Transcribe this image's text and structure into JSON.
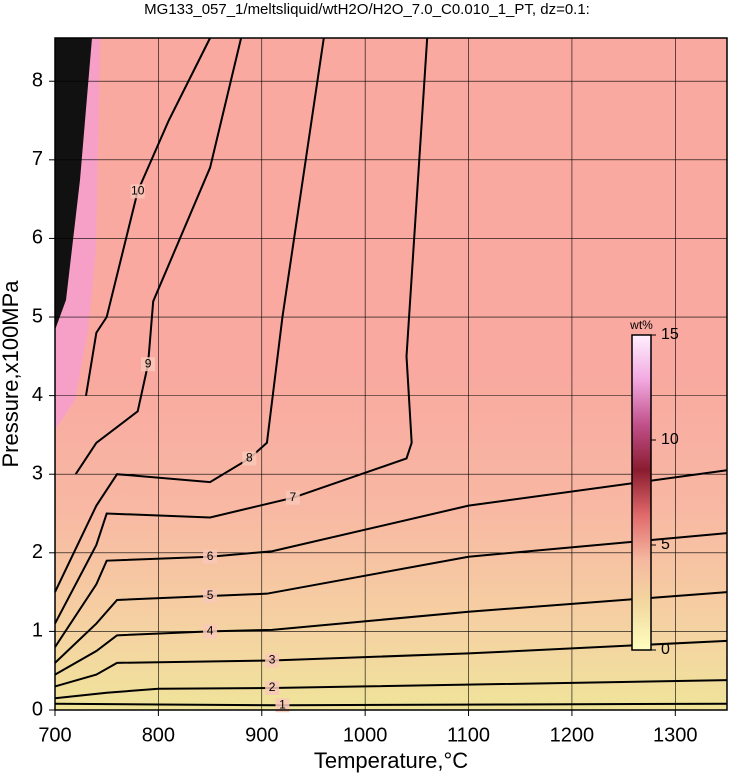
{
  "chart_data": {
    "type": "contour",
    "title": "MG133_057_1/meltsliquid/wtH2O/H2O_7.0_C0.010_1_PT, dz=0.1:",
    "x_label": "Temperature,°C",
    "y_label": "Pressure,x100MPa",
    "xlim": [
      700,
      1350
    ],
    "ylim": [
      0,
      8.55
    ],
    "xticks": [
      700,
      800,
      900,
      1000,
      1100,
      1200,
      1300
    ],
    "yticks": [
      0,
      1,
      2,
      3,
      4,
      5,
      6,
      7,
      8
    ],
    "grid": true,
    "contours": [
      {
        "level": 1,
        "x": [
          700,
          800,
          920,
          1130,
          1350
        ],
        "y": [
          0.08,
          0.07,
          0.06,
          0.07,
          0.08
        ]
      },
      {
        "level": 2,
        "x": [
          700,
          750,
          800,
          910,
          1000,
          1350
        ],
        "y": [
          0.15,
          0.22,
          0.27,
          0.28,
          0.3,
          0.38
        ]
      },
      {
        "level": 3,
        "x": [
          700,
          740,
          760,
          910,
          1100,
          1350
        ],
        "y": [
          0.3,
          0.45,
          0.6,
          0.63,
          0.72,
          0.88
        ]
      },
      {
        "level": 4,
        "x": [
          700,
          740,
          760,
          850,
          910,
          1100,
          1350
        ],
        "y": [
          0.45,
          0.75,
          0.95,
          1.0,
          1.02,
          1.25,
          1.5
        ]
      },
      {
        "level": 5,
        "x": [
          700,
          740,
          760,
          850,
          905,
          1100,
          1350
        ],
        "y": [
          0.6,
          1.1,
          1.4,
          1.45,
          1.48,
          1.95,
          2.25
        ]
      },
      {
        "level": 6,
        "x": [
          700,
          740,
          750,
          850,
          910,
          1100,
          1350
        ],
        "y": [
          0.8,
          1.6,
          1.9,
          1.95,
          2.02,
          2.6,
          3.05
        ]
      },
      {
        "level": 7,
        "x": [
          700,
          740,
          750,
          850,
          930,
          1040,
          1045,
          1040,
          1060
        ],
        "y": [
          1.1,
          2.1,
          2.5,
          2.45,
          2.7,
          3.2,
          3.4,
          4.5,
          8.55
        ]
      },
      {
        "level": 8,
        "x": [
          700,
          740,
          760,
          850,
          888,
          905,
          920,
          960
        ],
        "y": [
          1.5,
          2.6,
          3.0,
          2.9,
          3.2,
          3.4,
          5.0,
          8.55
        ]
      },
      {
        "level": 9,
        "x": [
          720,
          740,
          780,
          790,
          795,
          850,
          880
        ],
        "y": [
          3.0,
          3.4,
          3.8,
          4.4,
          5.2,
          6.9,
          8.55
        ]
      },
      {
        "level": 10,
        "x": [
          730,
          740,
          750,
          780,
          810,
          850
        ],
        "y": [
          4.0,
          4.8,
          5.0,
          6.6,
          7.5,
          8.55
        ]
      }
    ],
    "colorbar": {
      "label": "wt%",
      "lim": [
        0,
        15
      ],
      "ticks": [
        0,
        5,
        10,
        15
      ],
      "colors": [
        "#ffffc0",
        "#f3d9a0",
        "#f5b8a0",
        "#e06a6a",
        "#8a1c30",
        "#c0508a",
        "#f2a8e0",
        "#fff0ff"
      ]
    }
  }
}
